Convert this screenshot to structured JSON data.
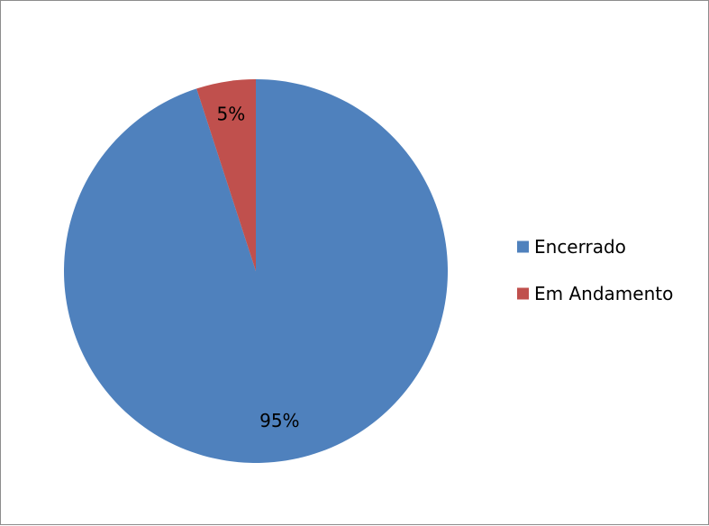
{
  "chart_data": {
    "type": "pie",
    "title": "",
    "categories": [
      "Encerrado",
      "Em Andamento"
    ],
    "values": [
      95,
      5
    ],
    "data_labels": [
      "95%",
      "5%"
    ],
    "colors": [
      "#4F81BD",
      "#C0504D"
    ],
    "legend_position": "right",
    "start_angle": "12 o'clock",
    "direction": "clockwise"
  }
}
